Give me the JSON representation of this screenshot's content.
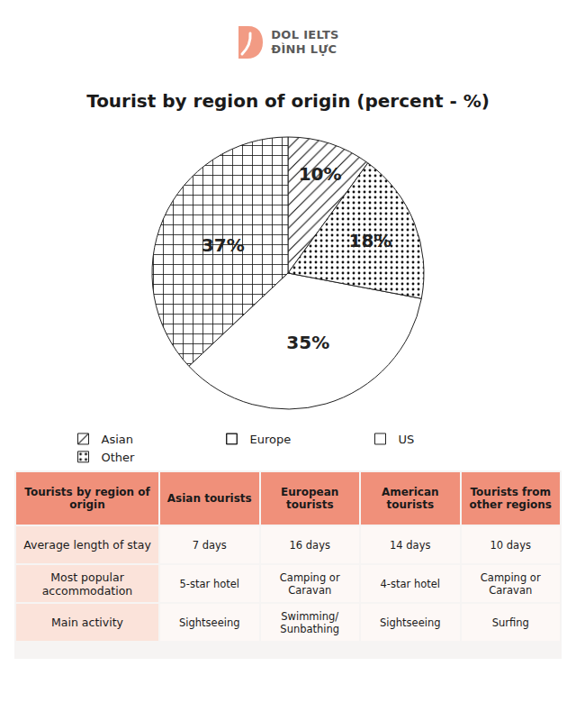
{
  "header": {
    "logo": [
      "DOL IELTS",
      "ĐÌNH LỰC"
    ]
  },
  "chart_data": {
    "type": "pie",
    "title": "Tourist by region of origin (percent - %)",
    "categories": [
      "Asian",
      "Europe",
      "US",
      "Other"
    ],
    "values": [
      10,
      37,
      35,
      18
    ],
    "value_labels": [
      "10%",
      "37%",
      "35%",
      "18%"
    ],
    "colors": [
      "#ffffff",
      "#ffffff",
      "#ffffff",
      "#ffffff"
    ],
    "data_labels": true,
    "legend": "bottom"
  },
  "table": {
    "header": [
      "Tourists by region of origin",
      "Asian tourists",
      "European tourists",
      "American tourists",
      "Tourists from other regions"
    ],
    "rows": [
      [
        "Average length of stay",
        "7 days",
        "16 days",
        "14 days",
        "10 days"
      ],
      [
        "Most popular accommodation",
        "5-star hotel",
        "Camping or Caravan",
        "4-star hotel",
        "Camping or Caravan"
      ],
      [
        "Main activity",
        "Sightseeing",
        "Swimming/ Sunbathing",
        "Sightseeing",
        "Surfing"
      ]
    ]
  }
}
